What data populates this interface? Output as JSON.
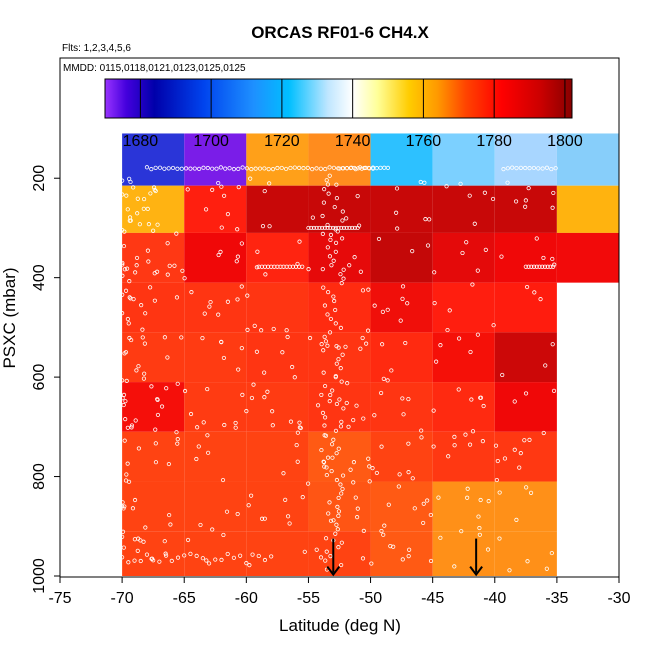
{
  "chart_data": {
    "type": "heatmap",
    "title": "ORCAS RF01-6 CH4.X",
    "flights_note": "Flts: 1,2,3,4,5,6",
    "dates_note": "MMDD: 0115,0118,0121,0123,0125,0125",
    "xlabel": "Latitude (deg N)",
    "ylabel": "PSXC (mbar)",
    "xlim": [
      -75,
      -30
    ],
    "ylim": [
      1000,
      100
    ],
    "x_ticks": [
      -75,
      -70,
      -65,
      -60,
      -55,
      -50,
      -45,
      -40,
      -35,
      -30
    ],
    "y_ticks": [
      200,
      400,
      600,
      800,
      1000
    ],
    "colorbar": {
      "range": [
        1670,
        1802
      ],
      "ticks": [
        1680,
        1700,
        1720,
        1740,
        1760,
        1780,
        1800
      ],
      "stops": [
        {
          "value": 1670,
          "color": "#9933ff"
        },
        {
          "value": 1676,
          "color": "#4400dd"
        },
        {
          "value": 1684,
          "color": "#0000aa"
        },
        {
          "value": 1698,
          "color": "#0044ee"
        },
        {
          "value": 1712,
          "color": "#1e90ff"
        },
        {
          "value": 1722,
          "color": "#00bfff"
        },
        {
          "value": 1733,
          "color": "#bfe6ff"
        },
        {
          "value": 1740,
          "color": "#ffffff"
        },
        {
          "value": 1747,
          "color": "#ffff99"
        },
        {
          "value": 1756,
          "color": "#ffcc00"
        },
        {
          "value": 1764,
          "color": "#ff9900"
        },
        {
          "value": 1772,
          "color": "#ff4400"
        },
        {
          "value": 1782,
          "color": "#ff0000"
        },
        {
          "value": 1793,
          "color": "#cc0000"
        },
        {
          "value": 1802,
          "color": "#880000"
        }
      ]
    },
    "cells": [
      {
        "lat": [
          -70,
          -65
        ],
        "p": [
          110,
          215
        ],
        "color": "#2a35d8"
      },
      {
        "lat": [
          -65,
          -60
        ],
        "p": [
          110,
          215
        ],
        "color": "#7a1de8"
      },
      {
        "lat": [
          -60,
          -55
        ],
        "p": [
          110,
          215
        ],
        "color": "#ffa019"
      },
      {
        "lat": [
          -55,
          -50
        ],
        "p": [
          110,
          215
        ],
        "color": "#ff8c1e"
      },
      {
        "lat": [
          -50,
          -45
        ],
        "p": [
          110,
          215
        ],
        "color": "#2dc1ff"
      },
      {
        "lat": [
          -45,
          -40
        ],
        "p": [
          110,
          215
        ],
        "color": "#7cd0ff"
      },
      {
        "lat": [
          -40,
          -35
        ],
        "p": [
          110,
          215
        ],
        "color": "#a8d6ff"
      },
      {
        "lat": [
          -35,
          -30
        ],
        "p": [
          110,
          215
        ],
        "color": "#87cefa"
      },
      {
        "lat": [
          -70,
          -65
        ],
        "p": [
          215,
          310
        ],
        "color": "#ffb312"
      },
      {
        "lat": [
          -65,
          -60
        ],
        "p": [
          215,
          310
        ],
        "color": "#ff1f0f"
      },
      {
        "lat": [
          -60,
          -55
        ],
        "p": [
          215,
          310
        ],
        "color": "#c80808"
      },
      {
        "lat": [
          -55,
          -50
        ],
        "p": [
          215,
          310
        ],
        "color": "#c80808"
      },
      {
        "lat": [
          -50,
          -45
        ],
        "p": [
          215,
          310
        ],
        "color": "#c80808"
      },
      {
        "lat": [
          -45,
          -40
        ],
        "p": [
          215,
          310
        ],
        "color": "#c80808"
      },
      {
        "lat": [
          -40,
          -35
        ],
        "p": [
          215,
          310
        ],
        "color": "#c80808"
      },
      {
        "lat": [
          -35,
          -30
        ],
        "p": [
          215,
          310
        ],
        "color": "#ffb30f"
      },
      {
        "lat": [
          -70,
          -65
        ],
        "p": [
          310,
          410
        ],
        "color": "#ff3814"
      },
      {
        "lat": [
          -65,
          -60
        ],
        "p": [
          310,
          410
        ],
        "color": "#f00808"
      },
      {
        "lat": [
          -60,
          -55
        ],
        "p": [
          310,
          410
        ],
        "color": "#ff2410"
      },
      {
        "lat": [
          -55,
          -50
        ],
        "p": [
          310,
          410
        ],
        "color": "#e60a0a"
      },
      {
        "lat": [
          -50,
          -45
        ],
        "p": [
          310,
          410
        ],
        "color": "#c40808"
      },
      {
        "lat": [
          -45,
          -40
        ],
        "p": [
          310,
          410
        ],
        "color": "#e40a0a"
      },
      {
        "lat": [
          -40,
          -35
        ],
        "p": [
          310,
          410
        ],
        "color": "#f00808"
      },
      {
        "lat": [
          -35,
          -30
        ],
        "p": [
          310,
          410
        ],
        "color": "#f20a0a"
      },
      {
        "lat": [
          -70,
          -65
        ],
        "p": [
          410,
          510
        ],
        "color": "#ff3512"
      },
      {
        "lat": [
          -65,
          -60
        ],
        "p": [
          410,
          510
        ],
        "color": "#ff3512"
      },
      {
        "lat": [
          -60,
          -55
        ],
        "p": [
          410,
          510
        ],
        "color": "#ff3512"
      },
      {
        "lat": [
          -55,
          -50
        ],
        "p": [
          410,
          510
        ],
        "color": "#ff2b10"
      },
      {
        "lat": [
          -50,
          -45
        ],
        "p": [
          410,
          510
        ],
        "color": "#f00f0a"
      },
      {
        "lat": [
          -45,
          -40
        ],
        "p": [
          410,
          510
        ],
        "color": "#ff1e0f"
      },
      {
        "lat": [
          -40,
          -35
        ],
        "p": [
          410,
          510
        ],
        "color": "#ff1c0e"
      },
      {
        "lat": [
          -70,
          -65
        ],
        "p": [
          510,
          610
        ],
        "color": "#ff3b12"
      },
      {
        "lat": [
          -65,
          -60
        ],
        "p": [
          510,
          610
        ],
        "color": "#ff3b12"
      },
      {
        "lat": [
          -60,
          -55
        ],
        "p": [
          510,
          610
        ],
        "color": "#ff3512"
      },
      {
        "lat": [
          -55,
          -50
        ],
        "p": [
          510,
          610
        ],
        "color": "#ff3512"
      },
      {
        "lat": [
          -50,
          -45
        ],
        "p": [
          510,
          610
        ],
        "color": "#ff2a10"
      },
      {
        "lat": [
          -45,
          -40
        ],
        "p": [
          510,
          610
        ],
        "color": "#f51008"
      },
      {
        "lat": [
          -40,
          -35
        ],
        "p": [
          510,
          610
        ],
        "color": "#cc0808"
      },
      {
        "lat": [
          -70,
          -65
        ],
        "p": [
          610,
          710
        ],
        "color": "#f50f0a"
      },
      {
        "lat": [
          -65,
          -60
        ],
        "p": [
          610,
          710
        ],
        "color": "#ff3b12"
      },
      {
        "lat": [
          -60,
          -55
        ],
        "p": [
          610,
          710
        ],
        "color": "#ff3b12"
      },
      {
        "lat": [
          -55,
          -50
        ],
        "p": [
          610,
          710
        ],
        "color": "#ff3512"
      },
      {
        "lat": [
          -50,
          -45
        ],
        "p": [
          610,
          710
        ],
        "color": "#ff3512"
      },
      {
        "lat": [
          -45,
          -40
        ],
        "p": [
          610,
          710
        ],
        "color": "#ff2a10"
      },
      {
        "lat": [
          -40,
          -35
        ],
        "p": [
          610,
          710
        ],
        "color": "#f00808"
      },
      {
        "lat": [
          -70,
          -65
        ],
        "p": [
          710,
          810
        ],
        "color": "#ff4312"
      },
      {
        "lat": [
          -65,
          -60
        ],
        "p": [
          710,
          810
        ],
        "color": "#ff4312"
      },
      {
        "lat": [
          -60,
          -55
        ],
        "p": [
          710,
          810
        ],
        "color": "#ff4312"
      },
      {
        "lat": [
          -55,
          -50
        ],
        "p": [
          710,
          810
        ],
        "color": "#ff5a14"
      },
      {
        "lat": [
          -50,
          -45
        ],
        "p": [
          710,
          810
        ],
        "color": "#ff4312"
      },
      {
        "lat": [
          -45,
          -40
        ],
        "p": [
          710,
          810
        ],
        "color": "#ff3812"
      },
      {
        "lat": [
          -40,
          -35
        ],
        "p": [
          710,
          810
        ],
        "color": "#ff3812"
      },
      {
        "lat": [
          -70,
          -65
        ],
        "p": [
          810,
          910
        ],
        "color": "#ff4312"
      },
      {
        "lat": [
          -65,
          -60
        ],
        "p": [
          810,
          910
        ],
        "color": "#ff4312"
      },
      {
        "lat": [
          -60,
          -55
        ],
        "p": [
          810,
          910
        ],
        "color": "#ff4312"
      },
      {
        "lat": [
          -55,
          -50
        ],
        "p": [
          810,
          910
        ],
        "color": "#ff5514"
      },
      {
        "lat": [
          -50,
          -45
        ],
        "p": [
          810,
          910
        ],
        "color": "#ff5a14"
      },
      {
        "lat": [
          -45,
          -40
        ],
        "p": [
          810,
          910
        ],
        "color": "#ff9018"
      },
      {
        "lat": [
          -40,
          -35
        ],
        "p": [
          810,
          910
        ],
        "color": "#ff9018"
      },
      {
        "lat": [
          -70,
          -65
        ],
        "p": [
          910,
          1000
        ],
        "color": "#ff4312"
      },
      {
        "lat": [
          -65,
          -60
        ],
        "p": [
          910,
          1000
        ],
        "color": "#ff4312"
      },
      {
        "lat": [
          -60,
          -55
        ],
        "p": [
          910,
          1000
        ],
        "color": "#ff4312"
      },
      {
        "lat": [
          -55,
          -50
        ],
        "p": [
          910,
          1000
        ],
        "color": "#ff4312"
      },
      {
        "lat": [
          -50,
          -45
        ],
        "p": [
          910,
          1000
        ],
        "color": "#ff5a14"
      },
      {
        "lat": [
          -45,
          -40
        ],
        "p": [
          910,
          1000
        ],
        "color": "#ff9018"
      },
      {
        "lat": [
          -40,
          -35
        ],
        "p": [
          910,
          1000
        ],
        "color": "#ff9018"
      }
    ],
    "flight_tracks": [
      {
        "name": "upper-transit",
        "lat_range": [
          -68,
          -35
        ],
        "p": 180
      },
      {
        "name": "tropopause-leg",
        "lat_range": [
          -52,
          -49
        ],
        "p": 180
      },
      {
        "name": "vertical-profile",
        "lat": -53,
        "p_range": [
          190,
          1000
        ]
      }
    ],
    "markers": [
      {
        "name": "arrow-1",
        "lat": -53,
        "p": 965
      },
      {
        "name": "arrow-2",
        "lat": -41.5,
        "p": 965
      }
    ]
  }
}
